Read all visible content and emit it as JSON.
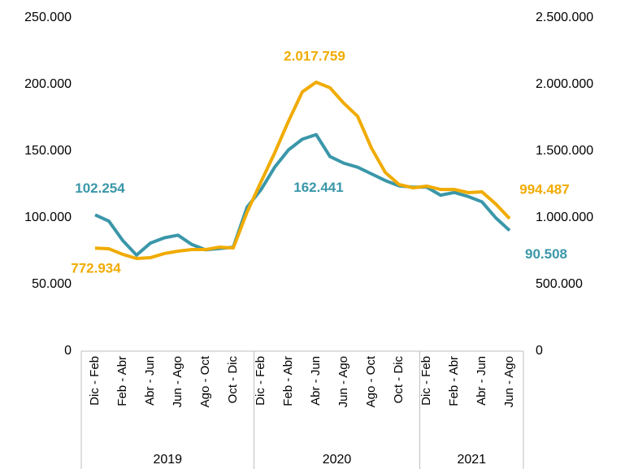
{
  "chart_data": {
    "type": "line",
    "categories": [
      "Dic - Feb",
      null,
      "Feb - Abr",
      null,
      "Abr - Jun",
      null,
      "Jun - Ago",
      null,
      "Ago - Oct",
      null,
      "Oct - Dic",
      null,
      "Dic - Feb",
      null,
      "Feb - Abr",
      null,
      "Abr - Jun",
      null,
      "Jun - Ago",
      null,
      "Ago - Oct",
      null,
      "Oct - Dic",
      null,
      "Dic - Feb",
      null,
      "Feb - Abr",
      null,
      "Abr - Jun",
      null,
      "Jun - Ago"
    ],
    "x_groups": [
      {
        "label": "2019",
        "start": 0,
        "end": 11
      },
      {
        "label": "2020",
        "start": 12,
        "end": 23
      },
      {
        "label": "2021",
        "start": 24,
        "end": 30
      }
    ],
    "series": [
      {
        "color": "#3a97a9",
        "axis": "y",
        "values": [
          102254,
          97500,
          83000,
          72000,
          81000,
          85000,
          87000,
          80000,
          76000,
          77000,
          78000,
          108000,
          121000,
          138000,
          151000,
          159000,
          162441,
          146000,
          141000,
          138000,
          133000,
          128000,
          124000,
          123000,
          123000,
          117000,
          119000,
          116000,
          112000,
          100000,
          90508
        ],
        "value_labels": [
          "102.254",
          null,
          null,
          null,
          null,
          null,
          null,
          null,
          null,
          null,
          null,
          null,
          null,
          null,
          null,
          null,
          "162.441",
          null,
          null,
          null,
          null,
          null,
          null,
          null,
          null,
          null,
          null,
          null,
          null,
          null,
          "90.508"
        ]
      },
      {
        "color": "#f0ab00",
        "axis": "y2",
        "values": [
          772934,
          768000,
          726000,
          695000,
          701000,
          732000,
          750000,
          762000,
          762000,
          780000,
          774000,
          1043000,
          1268000,
          1488000,
          1726000,
          1945000,
          2017759,
          1976000,
          1860000,
          1762000,
          1524000,
          1341000,
          1250000,
          1225000,
          1238000,
          1213000,
          1213000,
          1189000,
          1195000,
          1104000,
          994487
        ],
        "value_labels": [
          "772.934",
          null,
          null,
          null,
          null,
          null,
          null,
          null,
          null,
          null,
          null,
          null,
          null,
          null,
          null,
          null,
          "2.017.759",
          null,
          null,
          null,
          null,
          null,
          null,
          null,
          null,
          null,
          null,
          null,
          null,
          null,
          "994.487"
        ]
      }
    ],
    "ylim": [
      0,
      250000
    ],
    "yticks": [
      0,
      {
        "value": 50000,
        "label": "50.000"
      },
      {
        "value": 100000,
        "label": "100.000"
      },
      {
        "value": 150000,
        "label": "150.000"
      },
      {
        "value": 200000,
        "label": "200.000"
      },
      {
        "value": 250000,
        "label": "250.000"
      }
    ],
    "y2lim": [
      0,
      2500000
    ],
    "y2ticks": [
      0,
      {
        "value": 500000,
        "label": "500.000"
      },
      {
        "value": 1000000,
        "label": "1.000.000"
      },
      {
        "value": 1500000,
        "label": "1.500.000"
      },
      {
        "value": 2000000,
        "label": "2.000.000"
      },
      {
        "value": 2500000,
        "label": "2.500.000"
      }
    ],
    "grid": false
  }
}
